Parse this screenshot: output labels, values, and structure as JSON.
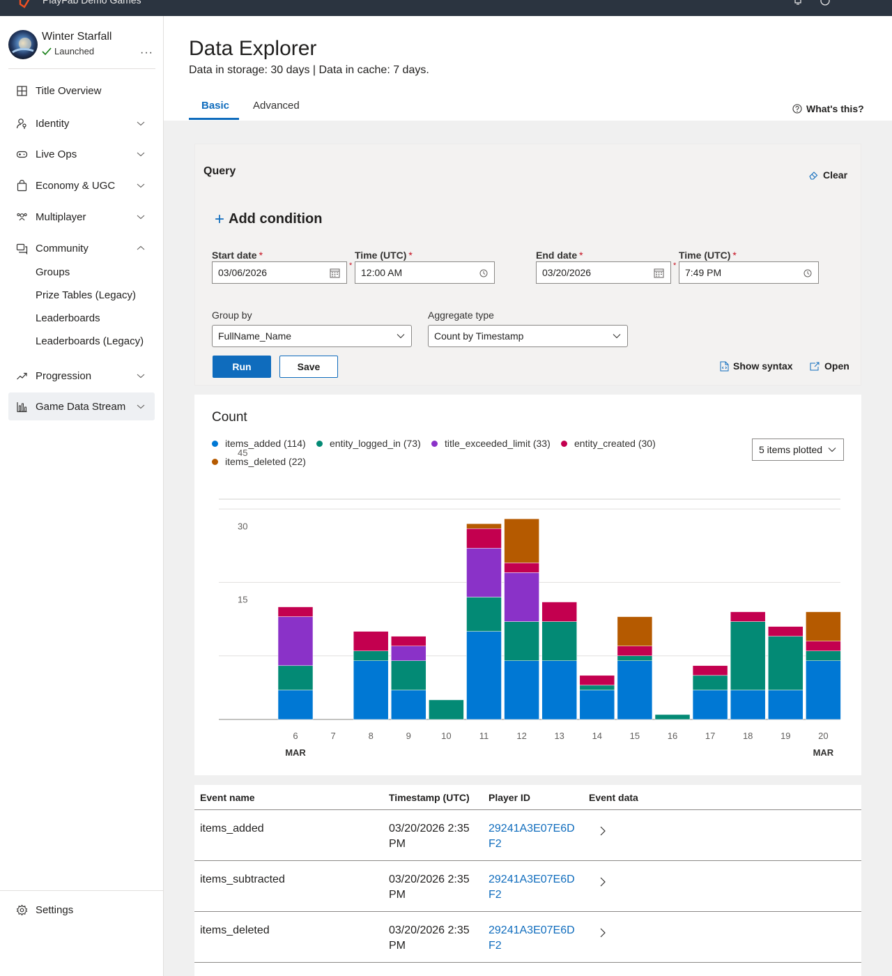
{
  "topbar": {
    "studio_name": "PlayFab Demo Games"
  },
  "sidebar": {
    "title_name": "Winter Starfall",
    "title_status": "Launched",
    "more": "···",
    "items": [
      {
        "label": "Title Overview"
      },
      {
        "label": "Identity"
      },
      {
        "label": "Live Ops"
      },
      {
        "label": "Economy & UGC"
      },
      {
        "label": "Multiplayer"
      },
      {
        "label": "Community"
      },
      {
        "label": "Progression"
      },
      {
        "label": "Game Data Stream"
      }
    ],
    "community_sub": [
      "Groups",
      "Prize Tables (Legacy)",
      "Leaderboards",
      "Leaderboards (Legacy)"
    ],
    "settings": "Settings"
  },
  "header": {
    "title": "Data Explorer",
    "subtitle": "Data in storage: 30 days | Data in cache: 7 days.",
    "tabs": [
      {
        "label": "Basic"
      },
      {
        "label": "Advanced"
      }
    ],
    "whats_this": "What's this?"
  },
  "query": {
    "title": "Query",
    "clear": "Clear",
    "add_condition": "Add condition",
    "start_date_label": "Start date",
    "start_date": "03/06/2026",
    "start_time_label": "Time (UTC)",
    "start_time": "12:00 AM",
    "end_date_label": "End date",
    "end_date": "03/20/2026",
    "end_time_label": "Time (UTC)",
    "end_time": "7:49 PM",
    "required_mark": "*",
    "group_by_label": "Group by",
    "group_by": "FullName_Name",
    "aggregate_label": "Aggregate type",
    "aggregate": "Count by Timestamp",
    "run": "Run",
    "save": "Save",
    "show_syntax": "Show syntax",
    "open": "Open"
  },
  "chart": {
    "title": "Count",
    "items_plotted": "5 items plotted",
    "legend": [
      {
        "label": "items_added (114)",
        "color": "#0078d4"
      },
      {
        "label": "entity_logged_in (73)",
        "color": "#038a75"
      },
      {
        "label": "title_exceeded_limit (33)",
        "color": "#8a32c8"
      },
      {
        "label": "entity_created (30)",
        "color": "#c3004f"
      },
      {
        "label": "items_deleted (22)",
        "color": "#b55a00"
      }
    ],
    "month_label_left": "MAR",
    "month_label_right": "MAR"
  },
  "chart_data": {
    "type": "bar",
    "stacked": true,
    "title": "Count",
    "categories": [
      "6",
      "7",
      "8",
      "9",
      "10",
      "11",
      "12",
      "13",
      "14",
      "15",
      "16",
      "17",
      "18",
      "19",
      "20"
    ],
    "ylim": [
      0,
      45
    ],
    "yticks": [
      15,
      30,
      45
    ],
    "grid": true,
    "series": [
      {
        "name": "items_added",
        "color": "#0078d4",
        "values": [
          6,
          0,
          12,
          6,
          0,
          18,
          12,
          12,
          6,
          12,
          0,
          6,
          6,
          6,
          12
        ]
      },
      {
        "name": "entity_logged_in",
        "color": "#038a75",
        "values": [
          5,
          0,
          2,
          6,
          4,
          7,
          8,
          8,
          1,
          1,
          1,
          3,
          14,
          11,
          2
        ]
      },
      {
        "name": "title_exceeded_limit",
        "color": "#8a32c8",
        "values": [
          10,
          0,
          0,
          3,
          0,
          10,
          10,
          0,
          0,
          0,
          0,
          0,
          0,
          0,
          0
        ]
      },
      {
        "name": "entity_created",
        "color": "#c3004f",
        "values": [
          2,
          0,
          4,
          2,
          0,
          4,
          2,
          4,
          2,
          2,
          0,
          2,
          2,
          2,
          2
        ]
      },
      {
        "name": "items_deleted",
        "color": "#b55a00",
        "values": [
          0,
          0,
          0,
          0,
          0,
          1,
          9,
          0,
          0,
          6,
          0,
          0,
          0,
          0,
          6
        ]
      }
    ]
  },
  "table": {
    "headers": [
      "Event name",
      "Timestamp (UTC)",
      "Player ID",
      "Event data"
    ],
    "rows": [
      {
        "event": "items_added",
        "timestamp": "03/20/2026 2:35 PM",
        "player_id": "29241A3E07E6DF2"
      },
      {
        "event": "items_subtracted",
        "timestamp": "03/20/2026 2:35 PM",
        "player_id": "29241A3E07E6DF2"
      },
      {
        "event": "items_deleted",
        "timestamp": "03/20/2026 2:35 PM",
        "player_id": "29241A3E07E6DF2"
      }
    ]
  }
}
